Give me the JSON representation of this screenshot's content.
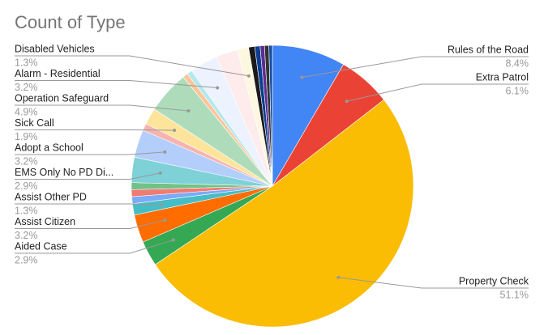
{
  "chart_data": {
    "type": "pie",
    "title": "Count of Type",
    "categories": [
      "Rules of the Road",
      "Extra Patrol",
      "Property Check",
      "Aided Case",
      "Assist Citizen",
      "Assist Other PD",
      null,
      null,
      null,
      "EMS Only No PD Di...",
      "Adopt a School",
      null,
      "Sick Call",
      "Operation Safeguard",
      null,
      null,
      "Alarm - Residential",
      null,
      "Disabled Vehicles",
      null,
      null,
      null,
      null,
      null
    ],
    "values": [
      8.4,
      6.1,
      51.1,
      2.9,
      3.2,
      1.3,
      0.8,
      0.8,
      0.8,
      2.9,
      3.2,
      0.8,
      1.9,
      4.9,
      0.6,
      0.6,
      3.2,
      2.5,
      1.3,
      0.7,
      0.6,
      0.5,
      0.5,
      0.4
    ],
    "value_labels": [
      "8.4%",
      "6.1%",
      "51.1%",
      "2.9%",
      "3.2%",
      "1.3%",
      null,
      null,
      null,
      "2.9%",
      "3.2%",
      null,
      "1.9%",
      "4.9%",
      null,
      null,
      "3.2%",
      null,
      "1.3%",
      null,
      null,
      null,
      null,
      null
    ],
    "colors": [
      "#4285f4",
      "#ea4335",
      "#fbbc04",
      "#34a853",
      "#ff6d01",
      "#46bdc6",
      "#7baaf7",
      "#f07b72",
      "#71c287",
      "#7ed1d7",
      "#b3cefb",
      "#f7b4ae",
      "#fde49b",
      "#aedcba",
      "#ffc599",
      "#b5e8eb",
      "#ecf2fe",
      "#fdeceb",
      "#fef7e0",
      "#1a1a1a",
      "#0b3d91",
      "#5c2d91",
      "#333333",
      "#174ea6"
    ]
  }
}
